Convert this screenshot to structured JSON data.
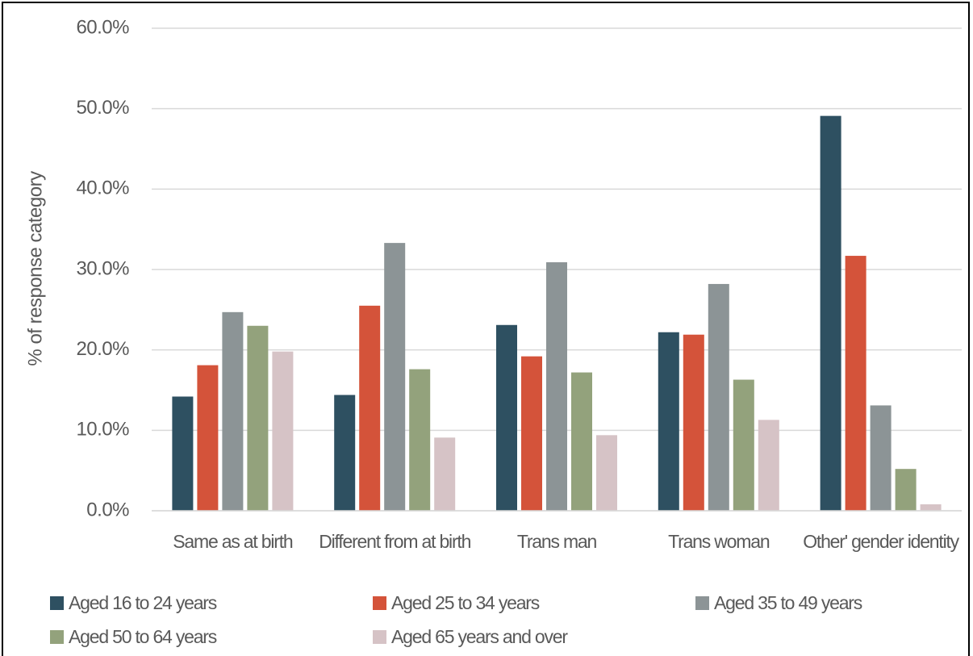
{
  "chart_data": {
    "type": "bar",
    "y_axis_label": "% of response category",
    "categories": [
      "Same as at birth",
      "Different from at birth",
      "Trans man",
      "Trans woman",
      "Other' gender identity"
    ],
    "series": [
      {
        "name": "Aged 16 to 24 years",
        "color": "#2e5061",
        "values": [
          14.2,
          14.4,
          23.1,
          22.2,
          49.1
        ]
      },
      {
        "name": "Aged 25 to 34 years",
        "color": "#d4533a",
        "values": [
          18.1,
          25.5,
          19.2,
          21.9,
          31.7
        ]
      },
      {
        "name": "Aged 35 to 49 years",
        "color": "#8c9496",
        "values": [
          24.7,
          33.3,
          30.9,
          28.2,
          13.1
        ]
      },
      {
        "name": "Aged 50 to 64 years",
        "color": "#93a27c",
        "values": [
          23.0,
          17.6,
          17.2,
          16.3,
          5.2
        ]
      },
      {
        "name": "Aged 65 years and over",
        "color": "#d6c3c6",
        "values": [
          19.8,
          9.1,
          9.4,
          11.3,
          0.8
        ]
      }
    ],
    "ylim": [
      0,
      60
    ],
    "yticks": [
      {
        "value": 0,
        "label": "0.0%"
      },
      {
        "value": 10,
        "label": "10.0%"
      },
      {
        "value": 20,
        "label": "20.0%"
      },
      {
        "value": 30,
        "label": "30.0%"
      },
      {
        "value": 40,
        "label": "40.0%"
      },
      {
        "value": 50,
        "label": "50.0%"
      },
      {
        "value": 60,
        "label": "60.0%"
      }
    ],
    "grid": true,
    "legend": "bottom"
  }
}
